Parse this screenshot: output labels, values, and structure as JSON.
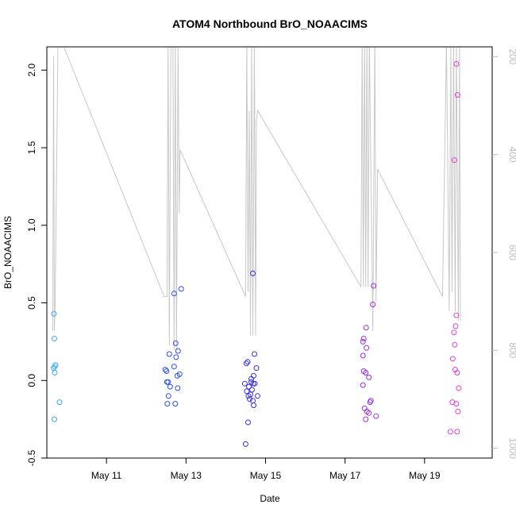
{
  "chart_data": {
    "type": "scatter",
    "title": "ATOM4 Northbound BrO_NOAACIMS",
    "xlabel": "Date",
    "ylabel": "BrO_NOAACIMS",
    "xlim": [
      9.5,
      20.7
    ],
    "ylim": [
      -0.5,
      2.15
    ],
    "y_ticks": [
      -0.5,
      0.0,
      0.5,
      1.0,
      1.5,
      2.0
    ],
    "y_tick_labels": [
      "-0.5",
      "0.0",
      "0.5",
      "1.0",
      "1.5",
      "2.0"
    ],
    "x_ticks": [
      11,
      13,
      15,
      17,
      19
    ],
    "x_tick_labels": [
      "May 11",
      "May 13",
      "May 15",
      "May 17",
      "May 19"
    ],
    "y2lim": [
      1020,
      180
    ],
    "y2_ticks": [
      200,
      400,
      600,
      800,
      1000
    ],
    "y2_tick_labels": [
      "200",
      "400",
      "600",
      "800",
      "1000"
    ],
    "colors": {
      "flight1": "#3fa9f5",
      "flight2": "#2950e6",
      "flight3": "#3a2fe0",
      "flight4": "#9a2fe0",
      "flight5": "#e03fd6",
      "pressure": "#c8c8c8"
    },
    "series": [
      {
        "name": "flight1",
        "color_key": "flight1",
        "points": [
          [
            9.68,
            0.43
          ],
          [
            9.69,
            0.27
          ],
          [
            9.67,
            0.08
          ],
          [
            9.7,
            0.09
          ],
          [
            9.72,
            0.1
          ],
          [
            9.7,
            0.05
          ],
          [
            9.82,
            -0.14
          ],
          [
            9.69,
            -0.25
          ]
        ]
      },
      {
        "name": "flight2",
        "color_key": "flight2",
        "points": [
          [
            12.88,
            0.59
          ],
          [
            12.7,
            0.56
          ],
          [
            12.74,
            0.24
          ],
          [
            12.8,
            0.19
          ],
          [
            12.58,
            0.17
          ],
          [
            12.75,
            0.15
          ],
          [
            12.48,
            0.07
          ],
          [
            12.51,
            0.06
          ],
          [
            12.7,
            0.09
          ],
          [
            12.84,
            0.04
          ],
          [
            12.78,
            0.03
          ],
          [
            12.52,
            -0.01
          ],
          [
            12.55,
            -0.01
          ],
          [
            12.6,
            -0.04
          ],
          [
            12.79,
            -0.05
          ],
          [
            12.56,
            -0.1
          ],
          [
            12.53,
            -0.15
          ],
          [
            12.73,
            -0.15
          ]
        ]
      },
      {
        "name": "flight3",
        "color_key": "flight3",
        "points": [
          [
            14.68,
            0.69
          ],
          [
            14.72,
            0.17
          ],
          [
            14.55,
            0.12
          ],
          [
            14.52,
            0.11
          ],
          [
            14.64,
            0.01
          ],
          [
            14.7,
            0.03
          ],
          [
            14.77,
            0.08
          ],
          [
            14.48,
            -0.02
          ],
          [
            14.64,
            -0.01
          ],
          [
            14.69,
            -0.02
          ],
          [
            14.73,
            -0.02
          ],
          [
            14.58,
            -0.04
          ],
          [
            14.66,
            -0.06
          ],
          [
            14.53,
            -0.07
          ],
          [
            14.62,
            -0.09
          ],
          [
            14.8,
            -0.1
          ],
          [
            14.57,
            -0.1
          ],
          [
            14.6,
            -0.12
          ],
          [
            14.68,
            -0.13
          ],
          [
            14.7,
            -0.16
          ],
          [
            14.56,
            -0.27
          ],
          [
            14.5,
            -0.41
          ]
        ]
      },
      {
        "name": "flight4",
        "color_key": "flight4",
        "points": [
          [
            17.72,
            0.61
          ],
          [
            17.7,
            0.49
          ],
          [
            17.53,
            0.34
          ],
          [
            17.47,
            0.27
          ],
          [
            17.45,
            0.25
          ],
          [
            17.54,
            0.21
          ],
          [
            17.45,
            0.16
          ],
          [
            17.47,
            0.06
          ],
          [
            17.52,
            0.05
          ],
          [
            17.6,
            0.02
          ],
          [
            17.45,
            -0.03
          ],
          [
            17.65,
            -0.13
          ],
          [
            17.63,
            -0.14
          ],
          [
            17.49,
            -0.18
          ],
          [
            17.55,
            -0.2
          ],
          [
            17.6,
            -0.21
          ],
          [
            17.78,
            -0.23
          ],
          [
            17.52,
            -0.25
          ]
        ]
      },
      {
        "name": "flight5",
        "color_key": "flight5",
        "points": [
          [
            19.8,
            2.04
          ],
          [
            19.83,
            1.84
          ],
          [
            19.75,
            1.42
          ],
          [
            19.8,
            0.42
          ],
          [
            19.78,
            0.35
          ],
          [
            19.74,
            0.31
          ],
          [
            19.76,
            0.23
          ],
          [
            19.71,
            0.14
          ],
          [
            19.77,
            0.07
          ],
          [
            19.82,
            0.05
          ],
          [
            19.86,
            -0.05
          ],
          [
            19.7,
            -0.14
          ],
          [
            19.8,
            -0.15
          ],
          [
            19.84,
            -0.2
          ],
          [
            19.65,
            -0.33
          ],
          [
            19.82,
            -0.33
          ]
        ]
      }
    ],
    "pressure_line": [
      [
        9.65,
        760
      ],
      [
        9.67,
        200
      ],
      [
        9.69,
        760
      ],
      [
        9.71,
        700
      ],
      [
        9.78,
        180
      ],
      [
        9.83,
        160
      ],
      [
        12.45,
        690
      ],
      [
        12.52,
        690
      ],
      [
        12.55,
        170
      ],
      [
        12.58,
        790
      ],
      [
        12.62,
        170
      ],
      [
        12.67,
        170
      ],
      [
        12.7,
        800
      ],
      [
        12.73,
        170
      ],
      [
        12.76,
        800
      ],
      [
        12.8,
        180
      ],
      [
        12.83,
        520
      ],
      [
        12.85,
        390
      ],
      [
        14.5,
        690
      ],
      [
        14.53,
        170
      ],
      [
        14.56,
        680
      ],
      [
        14.59,
        310
      ],
      [
        14.62,
        770
      ],
      [
        14.65,
        170
      ],
      [
        14.68,
        770
      ],
      [
        14.72,
        170
      ],
      [
        14.75,
        770
      ],
      [
        14.77,
        330
      ],
      [
        14.8,
        310
      ],
      [
        17.4,
        670
      ],
      [
        17.43,
        160
      ],
      [
        17.46,
        670
      ],
      [
        17.49,
        160
      ],
      [
        17.52,
        670
      ],
      [
        17.55,
        160
      ],
      [
        17.58,
        670
      ],
      [
        17.61,
        160
      ],
      [
        17.7,
        760
      ],
      [
        17.75,
        160
      ],
      [
        17.78,
        700
      ],
      [
        17.82,
        430
      ],
      [
        19.45,
        690
      ],
      [
        19.55,
        170
      ],
      [
        19.62,
        720
      ],
      [
        19.66,
        170
      ],
      [
        19.69,
        680
      ],
      [
        19.73,
        170
      ],
      [
        19.77,
        720
      ],
      [
        19.8,
        170
      ],
      [
        19.85,
        740
      ],
      [
        19.88,
        170
      ],
      [
        19.9,
        740
      ]
    ]
  }
}
